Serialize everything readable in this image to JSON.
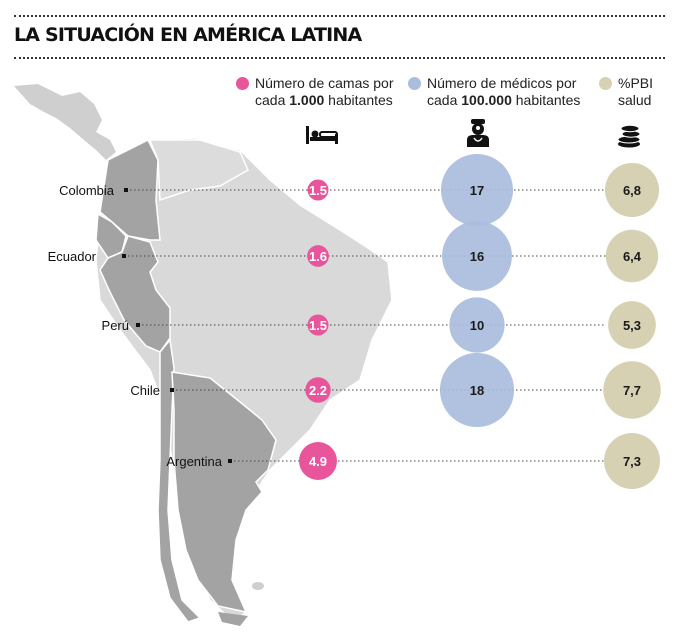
{
  "title": "LA SITUACIÓN EN AMÉRICA LATINA",
  "legend": {
    "beds": {
      "line1": "Número de camas por",
      "line2_prefix": "cada ",
      "line2_bold": "1.000",
      "line2_suffix": " habitantes",
      "color": "#e8559a",
      "icon": "bed-icon"
    },
    "doctors": {
      "line1": "Número de médicos por",
      "line2_prefix": "cada ",
      "line2_bold": "100.000",
      "line2_suffix": " habitantes",
      "color": "#a9bddd",
      "icon": "doctor-icon"
    },
    "gdp": {
      "line1": "%PBI",
      "line2": "salud",
      "color": "#d6d1b3",
      "icon": "coins-icon"
    }
  },
  "chart_data": {
    "type": "table",
    "categories": [
      "Colombia",
      "Ecuador",
      "Perú",
      "Chile",
      "Argentina"
    ],
    "series": [
      {
        "name": "Número de camas por cada 1.000 habitantes",
        "values": [
          "1.5",
          "1.6",
          "1.5",
          "2.2",
          "4.9"
        ],
        "color": "#e8559a"
      },
      {
        "name": "Número de médicos por cada 100.000 habitantes",
        "values": [
          "17",
          "16",
          "10",
          "18",
          null
        ],
        "color": "#a9bddd"
      },
      {
        "name": "%PBI salud",
        "values": [
          "6,8",
          "6,4",
          "5,3",
          "7,7",
          "7,3"
        ],
        "color": "#d6d1b3"
      }
    ]
  }
}
